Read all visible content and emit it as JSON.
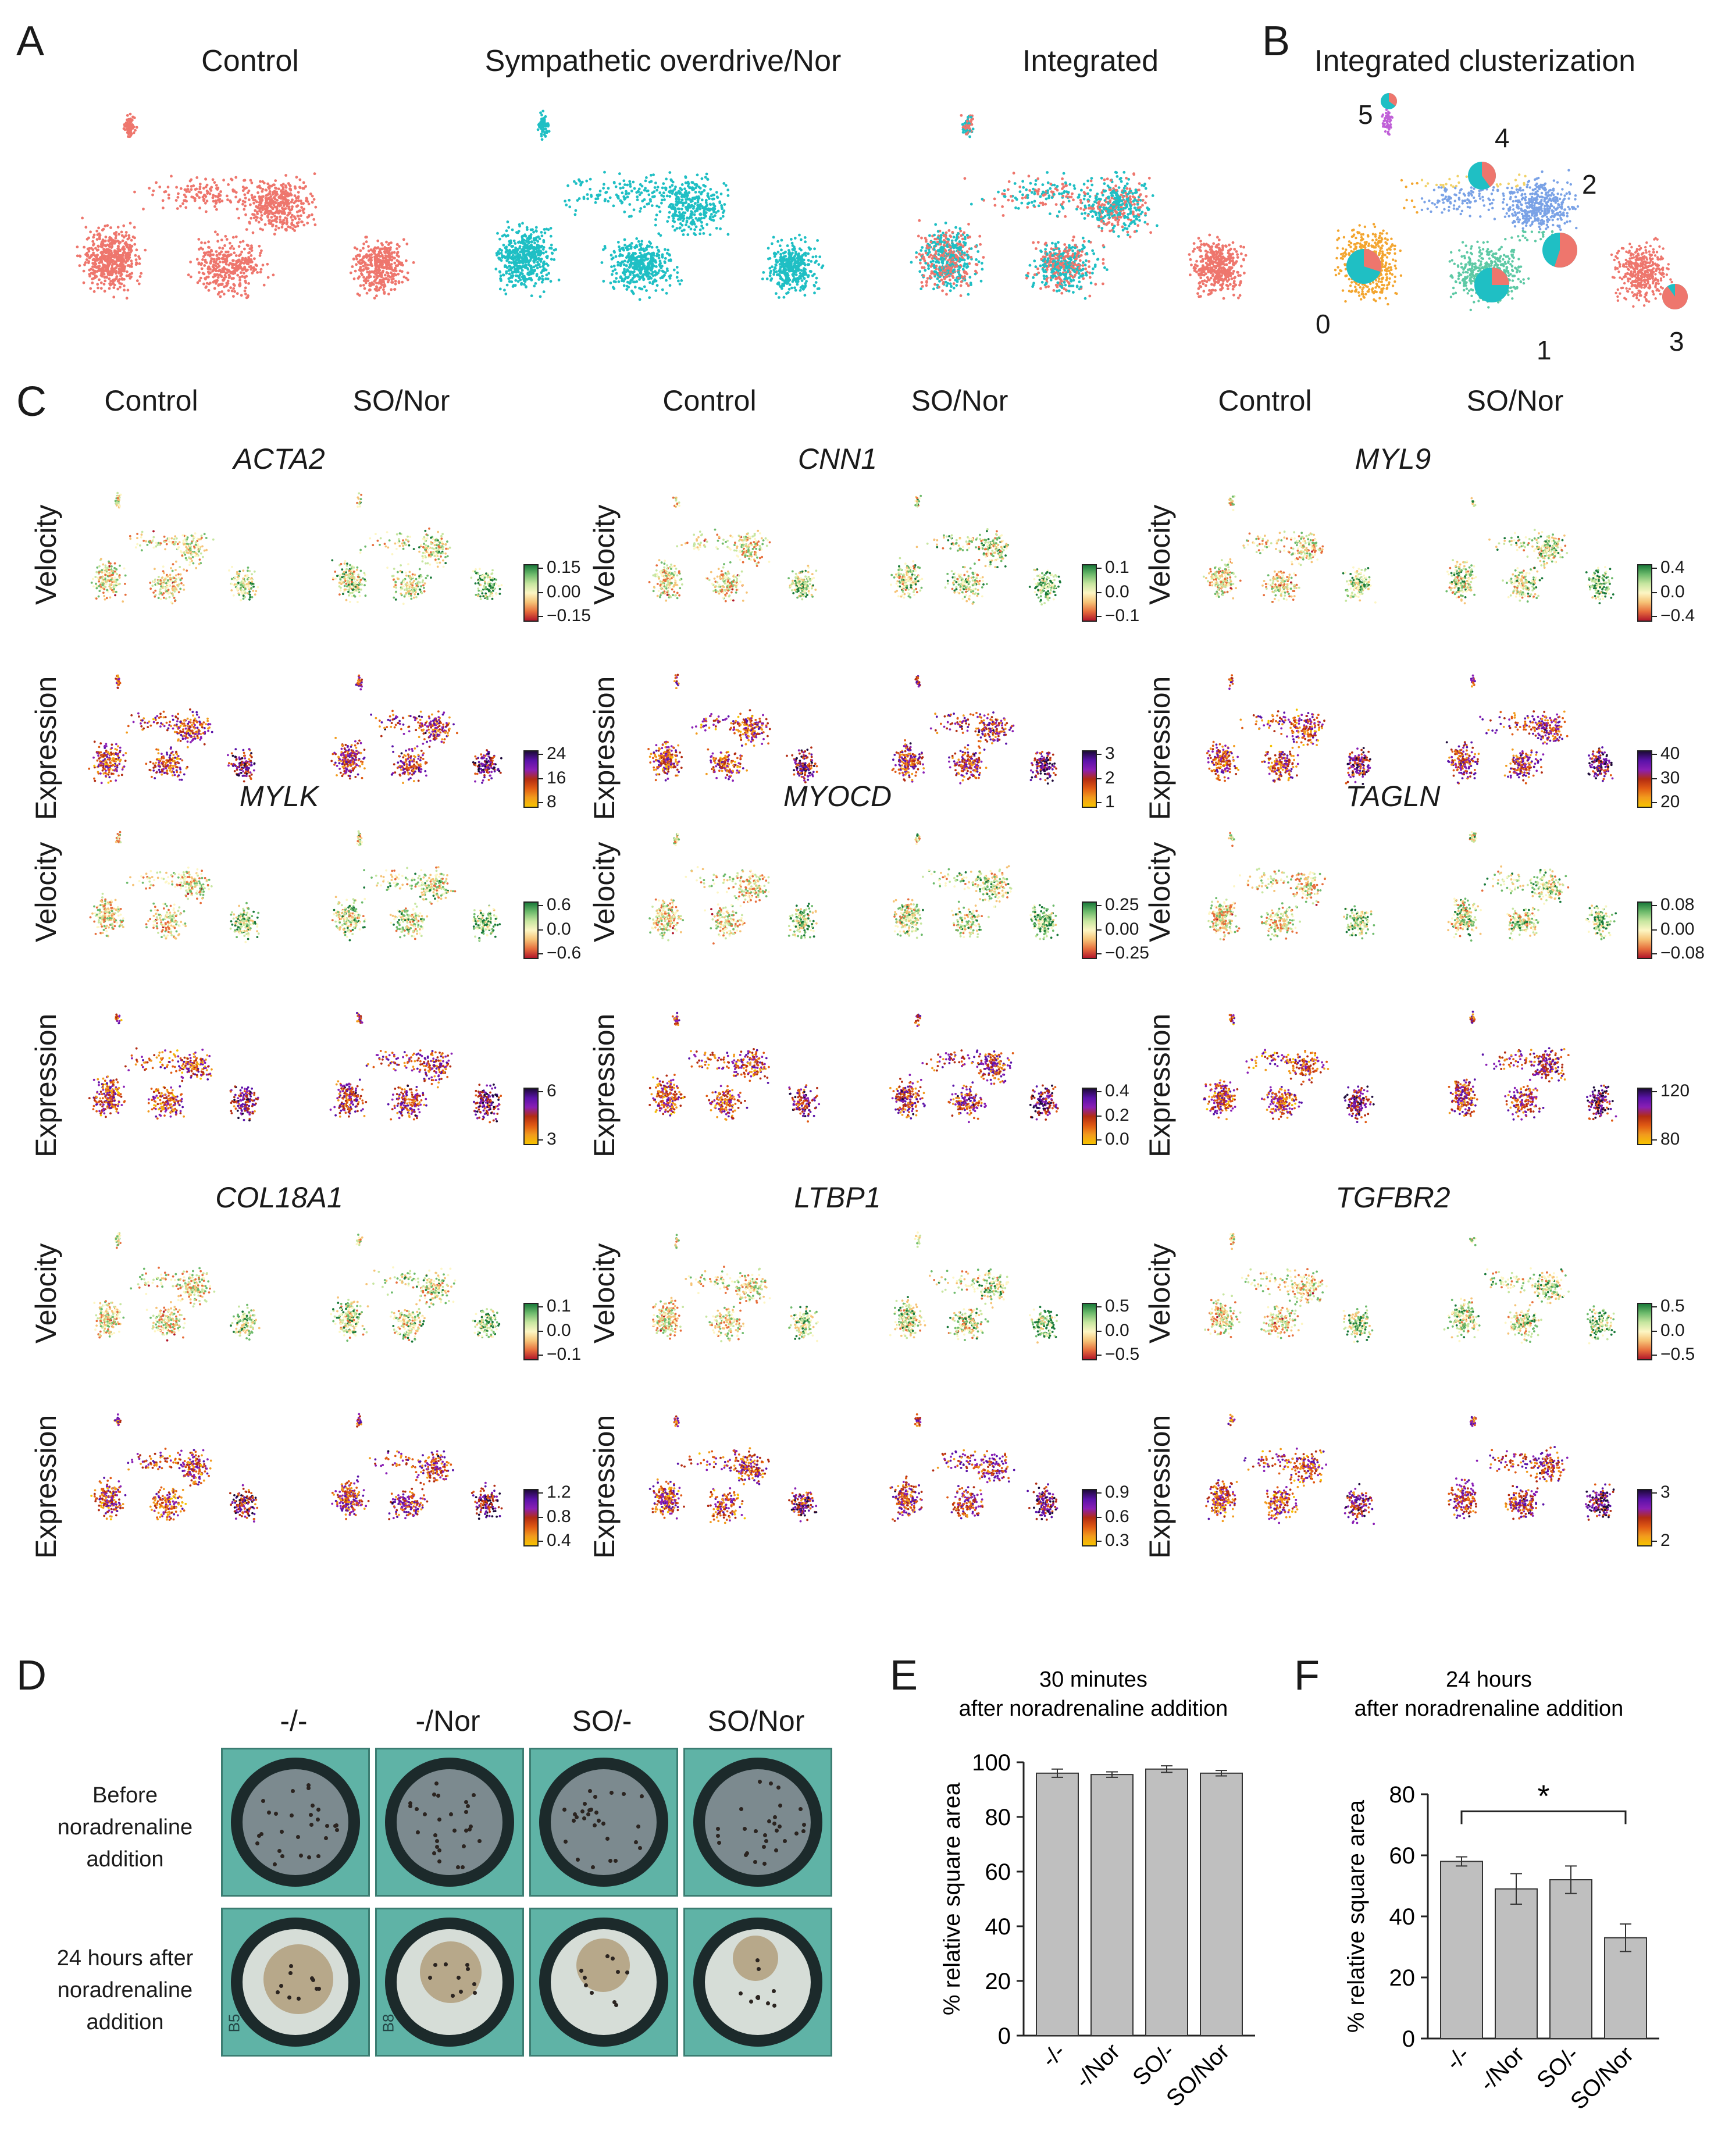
{
  "panels": {
    "A": "A",
    "B": "B",
    "C": "C",
    "D": "D",
    "E": "E",
    "F": "F"
  },
  "panelA": {
    "titles": [
      "Control",
      "Sympathetic overdrive/Nor",
      "Integrated"
    ],
    "colors": {
      "control": "#ee766d",
      "so": "#1fbfc4"
    }
  },
  "panelB": {
    "title": "Integrated clusterization",
    "clusters": [
      "0",
      "1",
      "2",
      "3",
      "4",
      "5"
    ],
    "colors": [
      "#f3a52f",
      "#5ec9a5",
      "#7aa2e6",
      "#ee766d",
      "#f1d26a",
      "#c060d8"
    ]
  },
  "panelC": {
    "cond_labels": [
      "Control",
      "SO/Nor"
    ],
    "row_labels": {
      "velocity": "Velocity",
      "expression": "Expression"
    },
    "genes": [
      {
        "name": "ACTA2",
        "vel": [
          "0.15",
          "0.00",
          "−0.15"
        ],
        "exp": [
          "24",
          "16",
          "8"
        ]
      },
      {
        "name": "CNN1",
        "vel": [
          "0.1",
          "0.0",
          "−0.1"
        ],
        "exp": [
          "3",
          "2",
          "1"
        ]
      },
      {
        "name": "MYL9",
        "vel": [
          "0.4",
          "0.0",
          "−0.4"
        ],
        "exp": [
          "40",
          "30",
          "20"
        ]
      },
      {
        "name": "MYLK",
        "vel": [
          "0.6",
          "0.0",
          "−0.6"
        ],
        "exp": [
          "6",
          "3"
        ]
      },
      {
        "name": "MYOCD",
        "vel": [
          "0.25",
          "0.00",
          "−0.25"
        ],
        "exp": [
          "0.4",
          "0.2",
          "0.0"
        ]
      },
      {
        "name": "TAGLN",
        "vel": [
          "0.08",
          "0.00",
          "−0.08"
        ],
        "exp": [
          "120",
          "80"
        ]
      },
      {
        "name": "COL18A1",
        "vel": [
          "0.1",
          "0.0",
          "−0.1"
        ],
        "exp": [
          "1.2",
          "0.8",
          "0.4"
        ]
      },
      {
        "name": "LTBP1",
        "vel": [
          "0.5",
          "0.0",
          "−0.5"
        ],
        "exp": [
          "0.9",
          "0.6",
          "0.3"
        ]
      },
      {
        "name": "TGFBR2",
        "vel": [
          "0.5",
          "0.0",
          "−0.5"
        ],
        "exp": [
          "3",
          "2"
        ]
      }
    ]
  },
  "panelD": {
    "conditions": [
      "-/-",
      "-/Nor",
      "SO/-",
      "SO/Nor"
    ],
    "rows": [
      "Before noradrenaline addition",
      "24 hours after noradrenaline addition"
    ],
    "well_labels": [
      "B5",
      "B8"
    ]
  },
  "chart_data": [
    {
      "type": "bar",
      "title": "30 minutes after noradrenaline addition",
      "ylabel": "% relative square area",
      "categories": [
        "-/-",
        "-/Nor",
        "SO/-",
        "SO/Nor"
      ],
      "values": [
        96,
        95.5,
        97.5,
        96
      ],
      "errors": [
        1.5,
        1,
        1.2,
        1
      ],
      "ylim": [
        0,
        100
      ],
      "yticks": [
        0,
        20,
        40,
        60,
        80,
        100
      ],
      "bar_color": "#bfbfbf"
    },
    {
      "type": "bar",
      "title": "24 hours after noradrenaline addition",
      "ylabel": "% relative square area",
      "categories": [
        "-/-",
        "-/Nor",
        "SO/-",
        "SO/Nor"
      ],
      "values": [
        58,
        49,
        52,
        33
      ],
      "errors": [
        1.5,
        5,
        4.5,
        4.5
      ],
      "ylim": [
        0,
        80
      ],
      "yticks": [
        0,
        20,
        40,
        60,
        80
      ],
      "bar_color": "#bfbfbf",
      "significance": {
        "from": 0,
        "to": 3,
        "label": "*"
      }
    }
  ]
}
